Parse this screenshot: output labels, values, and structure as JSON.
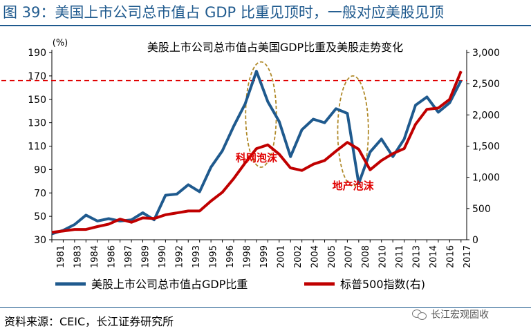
{
  "figure": {
    "title": "图 39：美国上市公司总市值占 GDP 比重见顶时，一般对应美股见顶",
    "source": "资料来源：CEIC，长江证券研究所",
    "watermark": "长江宏观固收"
  },
  "colors": {
    "series_blue": "#1f5a8e",
    "series_red": "#c00000",
    "threshold": "#e00000",
    "ellipse": "#b08a2a",
    "annotation": "#e00000"
  },
  "chart_data": {
    "type": "line",
    "title": "美股上市公司总市值占美国GDP比重及美股走势变化",
    "left_unit": "(%)",
    "x_ticks": [
      "1981",
      "1983",
      "1984",
      "1986",
      "1987",
      "1989",
      "1990",
      "1992",
      "1993",
      "1995",
      "1996",
      "1998",
      "1999",
      "2001",
      "2002",
      "2004",
      "2005",
      "2007",
      "2008",
      "2010",
      "2011",
      "2013",
      "2014",
      "2016",
      "2017"
    ],
    "x_range": [
      1981,
      2017.5
    ],
    "y_left": {
      "range": [
        30,
        190
      ],
      "ticks": [
        30,
        50,
        70,
        90,
        110,
        130,
        150,
        170,
        190
      ]
    },
    "y_right": {
      "range": [
        0,
        3000
      ],
      "ticks": [
        0,
        500,
        1000,
        1500,
        2000,
        2500,
        3000
      ],
      "tick_labels": [
        "0",
        "500",
        "1,000",
        "1,500",
        "2,000",
        "2,500",
        "3,000"
      ]
    },
    "threshold_left": 166,
    "series": [
      {
        "name": "美股上市公司总市值占GDP比重",
        "axis": "left",
        "points": [
          [
            1981,
            35
          ],
          [
            1982,
            38
          ],
          [
            1983,
            43
          ],
          [
            1984,
            51
          ],
          [
            1985,
            46
          ],
          [
            1986,
            48
          ],
          [
            1987,
            46
          ],
          [
            1988,
            47
          ],
          [
            1989,
            53
          ],
          [
            1990,
            47
          ],
          [
            1991,
            68
          ],
          [
            1992,
            69
          ],
          [
            1993,
            77
          ],
          [
            1994,
            71
          ],
          [
            1995,
            92
          ],
          [
            1996,
            106
          ],
          [
            1997,
            127
          ],
          [
            1998,
            146
          ],
          [
            1999,
            174
          ],
          [
            2000,
            148
          ],
          [
            2001,
            131
          ],
          [
            2002,
            101
          ],
          [
            2003,
            124
          ],
          [
            2004,
            133
          ],
          [
            2005,
            130
          ],
          [
            2006,
            142
          ],
          [
            2007,
            138
          ],
          [
            2008,
            78
          ],
          [
            2009,
            105
          ],
          [
            2010,
            116
          ],
          [
            2011,
            101
          ],
          [
            2012,
            116
          ],
          [
            2013,
            145
          ],
          [
            2014,
            152
          ],
          [
            2015,
            139
          ],
          [
            2016,
            147
          ],
          [
            2017,
            166
          ]
        ]
      },
      {
        "name": "标普500指数(右)",
        "axis": "right",
        "points": [
          [
            1981,
            120
          ],
          [
            1982,
            140
          ],
          [
            1983,
            165
          ],
          [
            1984,
            165
          ],
          [
            1985,
            210
          ],
          [
            1986,
            250
          ],
          [
            1987,
            330
          ],
          [
            1988,
            280
          ],
          [
            1989,
            350
          ],
          [
            1990,
            340
          ],
          [
            1991,
            400
          ],
          [
            1992,
            430
          ],
          [
            1993,
            460
          ],
          [
            1994,
            460
          ],
          [
            1995,
            620
          ],
          [
            1996,
            760
          ],
          [
            1997,
            980
          ],
          [
            1998,
            1230
          ],
          [
            1999,
            1460
          ],
          [
            2000,
            1520
          ],
          [
            2001,
            1370
          ],
          [
            2002,
            1150
          ],
          [
            2003,
            1110
          ],
          [
            2004,
            1210
          ],
          [
            2005,
            1270
          ],
          [
            2006,
            1420
          ],
          [
            2007,
            1560
          ],
          [
            2008,
            1450
          ],
          [
            2009,
            1120
          ],
          [
            2010,
            1270
          ],
          [
            2011,
            1380
          ],
          [
            2012,
            1460
          ],
          [
            2013,
            1850
          ],
          [
            2014,
            2090
          ],
          [
            2015,
            2110
          ],
          [
            2016,
            2250
          ],
          [
            2017,
            2700
          ]
        ]
      }
    ],
    "annotations": [
      {
        "text": "科网泡沫",
        "x": 1999.0,
        "y_left": 97
      },
      {
        "text": "地产泡沫",
        "x": 2007.5,
        "y_left": 73
      }
    ],
    "ellipses": [
      {
        "cx": 1999.4,
        "cy_left": 137,
        "rx_years": 1.35,
        "ry_left": 45
      },
      {
        "cx": 2007.5,
        "cy_left": 123,
        "rx_years": 1.35,
        "ry_left": 47
      }
    ],
    "legend": {
      "position": "bottom",
      "items": [
        {
          "label": "美股上市公司总市值占GDP比重",
          "series": 0
        },
        {
          "label": "标普500指数(右)",
          "series": 1
        }
      ]
    }
  }
}
